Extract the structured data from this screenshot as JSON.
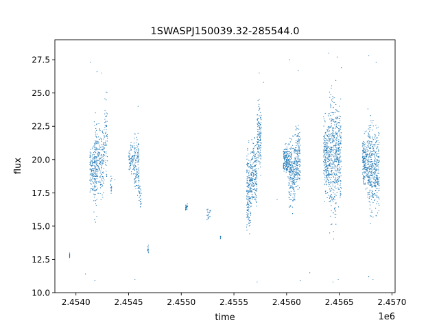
{
  "chart_data": {
    "type": "scatter",
    "title": "1SWASPJ150039.32-285544.0",
    "xlabel": "time",
    "ylabel": "flux",
    "x_offset_label": "1e6",
    "xlim": [
      2.4538,
      2.45703
    ],
    "ylim": [
      10.0,
      29.0
    ],
    "x_ticks": [
      2.454,
      2.4545,
      2.455,
      2.4555,
      2.456,
      2.4565,
      2.457
    ],
    "x_tick_labels": [
      "2.4540",
      "2.4545",
      "2.4550",
      "2.4555",
      "2.4560",
      "2.4565",
      "2.4570"
    ],
    "y_ticks": [
      10.0,
      12.5,
      15.0,
      17.5,
      20.0,
      22.5,
      25.0,
      27.5
    ],
    "y_tick_labels": [
      "10.0",
      "12.5",
      "15.0",
      "17.5",
      "20.0",
      "22.5",
      "25.0",
      "27.5"
    ],
    "grid": false,
    "marker_color": "#1f77b4",
    "series": [
      {
        "clusters": [
          {
            "x": [
              2.45394,
              2.45394
            ],
            "y": [
              12.4,
              13.1
            ],
            "n": 12
          },
          {
            "x": [
              2.45413,
              2.45417
            ],
            "y": [
              17.0,
              21.5
            ],
            "n": 90
          },
          {
            "x": [
              2.45417,
              2.4542
            ],
            "y": [
              14.5,
              24.5
            ],
            "n": 140
          },
          {
            "x": [
              2.4542,
              2.45427
            ],
            "y": [
              16.5,
              23.5
            ],
            "n": 160
          },
          {
            "x": [
              2.45427,
              2.4543
            ],
            "y": [
              17.5,
              26.0
            ],
            "n": 60
          },
          {
            "x": [
              2.45433,
              2.45434
            ],
            "y": [
              17.0,
              19.0
            ],
            "n": 15
          },
          {
            "x": [
              2.4545,
              2.45455
            ],
            "y": [
              18.5,
              21.5
            ],
            "n": 70
          },
          {
            "x": [
              2.45455,
              2.4546
            ],
            "y": [
              16.0,
              22.8
            ],
            "n": 130
          },
          {
            "x": [
              2.4546,
              2.45462
            ],
            "y": [
              15.5,
              18.5
            ],
            "n": 25
          },
          {
            "x": [
              2.45468,
              2.45469
            ],
            "y": [
              12.7,
              14.0
            ],
            "n": 10
          },
          {
            "x": [
              2.45504,
              2.45506
            ],
            "y": [
              16.0,
              16.8
            ],
            "n": 25
          },
          {
            "x": [
              2.45523,
              2.45528
            ],
            "y": [
              15.2,
              16.6
            ],
            "n": 20
          },
          {
            "x": [
              2.45537,
              2.45538
            ],
            "y": [
              13.8,
              14.5
            ],
            "n": 8
          },
          {
            "x": [
              2.45562,
              2.45566
            ],
            "y": [
              13.0,
              22.0
            ],
            "n": 170
          },
          {
            "x": [
              2.45566,
              2.45572
            ],
            "y": [
              15.5,
              22.5
            ],
            "n": 200
          },
          {
            "x": [
              2.45572,
              2.45576
            ],
            "y": [
              18.0,
              25.5
            ],
            "n": 140
          },
          {
            "x": [
              2.45597,
              2.45602
            ],
            "y": [
              18.5,
              21.5
            ],
            "n": 150
          },
          {
            "x": [
              2.45602,
              2.45608
            ],
            "y": [
              15.5,
              22.5
            ],
            "n": 220
          },
          {
            "x": [
              2.45608,
              2.45613
            ],
            "y": [
              17.0,
              23.5
            ],
            "n": 170
          },
          {
            "x": [
              2.45635,
              2.4564
            ],
            "y": [
              16.0,
              24.0
            ],
            "n": 200
          },
          {
            "x": [
              2.4564,
              2.45647
            ],
            "y": [
              13.0,
              27.5
            ],
            "n": 330
          },
          {
            "x": [
              2.45647,
              2.45652
            ],
            "y": [
              15.5,
              25.5
            ],
            "n": 210
          },
          {
            "x": [
              2.45672,
              2.45677
            ],
            "y": [
              17.0,
              22.5
            ],
            "n": 170
          },
          {
            "x": [
              2.45677,
              2.45682
            ],
            "y": [
              14.5,
              24.5
            ],
            "n": 210
          },
          {
            "x": [
              2.45682,
              2.45688
            ],
            "y": [
              15.0,
              23.5
            ],
            "n": 220
          }
        ],
        "outliers": [
          [
            2.45414,
            27.3
          ],
          [
            2.4542,
            26.6
          ],
          [
            2.45424,
            26.5
          ],
          [
            2.45418,
            10.9
          ],
          [
            2.45409,
            11.4
          ],
          [
            2.45437,
            18.5
          ],
          [
            2.45459,
            24.0
          ],
          [
            2.45456,
            11.0
          ],
          [
            2.45469,
            13.0
          ],
          [
            2.45574,
            26.5
          ],
          [
            2.45578,
            25.8
          ],
          [
            2.45572,
            10.8
          ],
          [
            2.45603,
            27.5
          ],
          [
            2.45611,
            26.7
          ],
          [
            2.45613,
            10.9
          ],
          [
            2.4564,
            28.0
          ],
          [
            2.45648,
            27.7
          ],
          [
            2.45652,
            26.9
          ],
          [
            2.45644,
            10.8
          ],
          [
            2.45649,
            11.0
          ],
          [
            2.45678,
            27.8
          ],
          [
            2.45685,
            27.3
          ],
          [
            2.45682,
            11.0
          ],
          [
            2.45678,
            11.2
          ],
          [
            2.45622,
            11.5
          ],
          [
            2.45591,
            17.0
          ]
        ]
      }
    ]
  }
}
